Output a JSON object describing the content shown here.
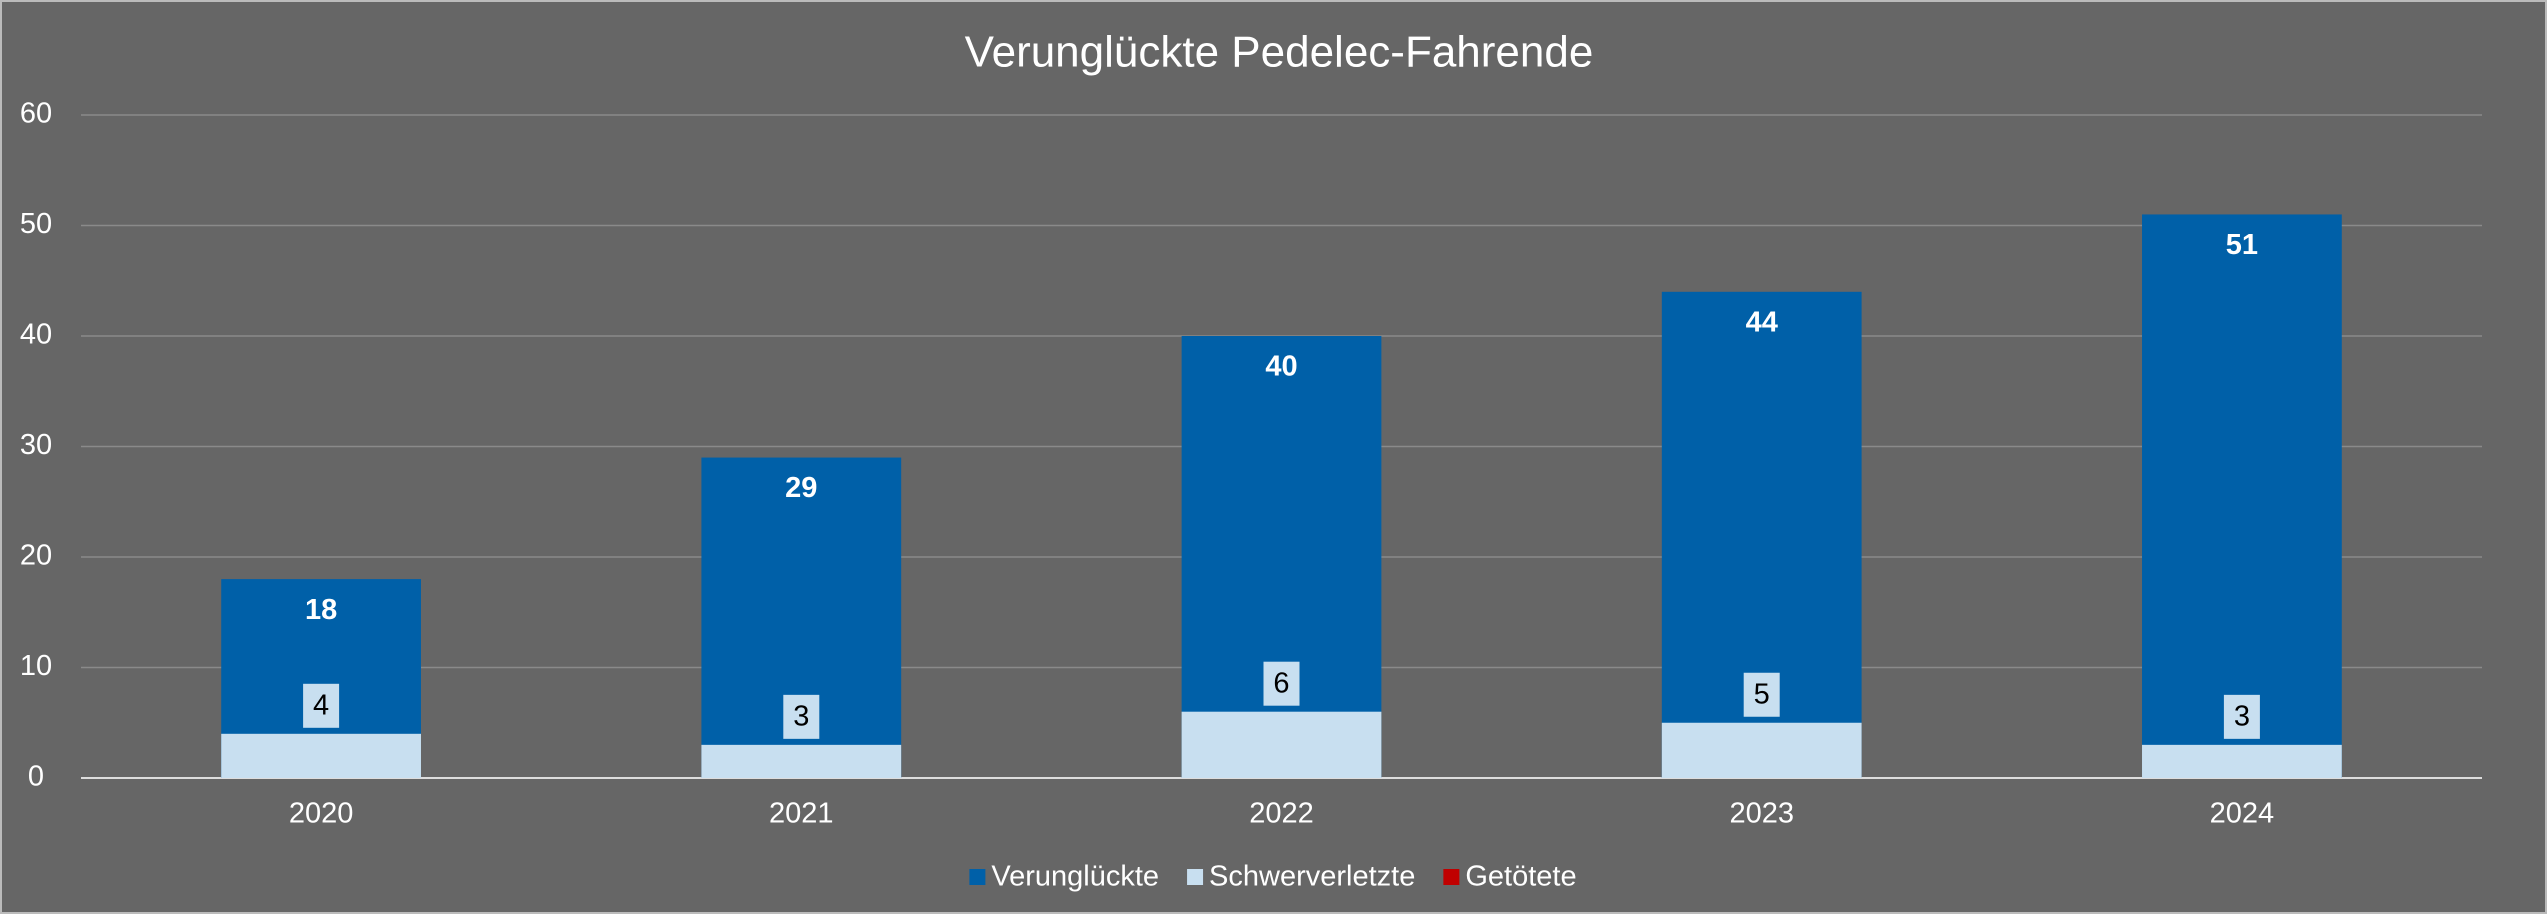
{
  "chart_data": {
    "type": "bar",
    "title": "Verunglückte Pedelec-Fahrende",
    "categories": [
      "2020",
      "2021",
      "2022",
      "2023",
      "2024"
    ],
    "series": [
      {
        "name": "Verunglückte",
        "color": "#0060a8",
        "values": [
          18,
          29,
          40,
          44,
          51
        ]
      },
      {
        "name": "Schwerverletzte",
        "color": "#c8dff0",
        "values": [
          4,
          3,
          6,
          5,
          3
        ]
      },
      {
        "name": "Getötete",
        "color": "#c00000",
        "values": [
          0,
          0,
          0,
          0,
          0
        ]
      }
    ],
    "ylim": [
      0,
      60
    ],
    "yticks": [
      0,
      10,
      20,
      30,
      40,
      50,
      60
    ],
    "grid": true,
    "legend": "bottom"
  }
}
